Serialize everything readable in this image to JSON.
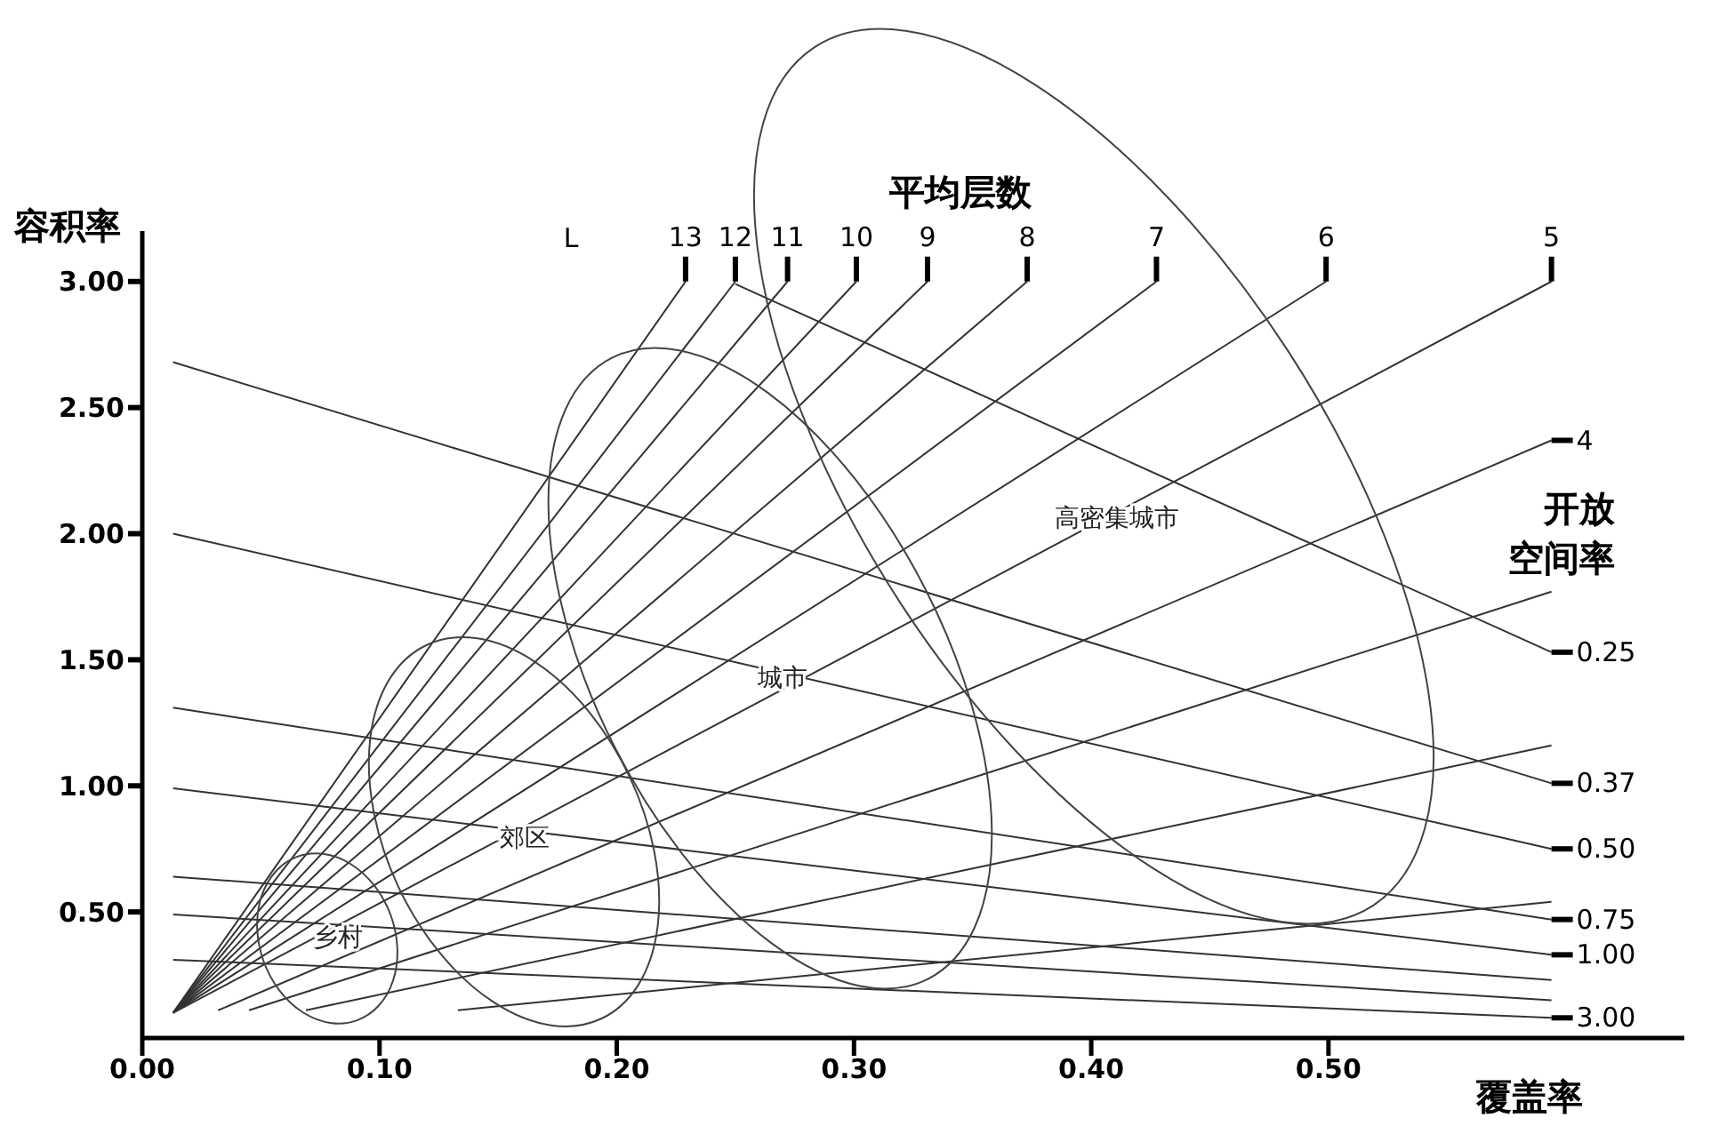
{
  "chart_data": {
    "type": "line",
    "xlabel": "覆盖率",
    "ylabel": "容积率",
    "xlim": [
      0,
      0.65
    ],
    "ylim": [
      0,
      3.2
    ],
    "xticks": [
      {
        "value": 0,
        "label": "0.00"
      },
      {
        "value": 0.1,
        "label": "0.10"
      },
      {
        "value": 0.2,
        "label": "0.20"
      },
      {
        "value": 0.3,
        "label": "0.30"
      },
      {
        "value": 0.4,
        "label": "0.40"
      },
      {
        "value": 0.5,
        "label": "0.50"
      }
    ],
    "yticks": [
      {
        "value": 0.5,
        "label": "0.50"
      },
      {
        "value": 1,
        "label": "1.00"
      },
      {
        "value": 1.5,
        "label": "1.50"
      },
      {
        "value": 2,
        "label": "2.00"
      },
      {
        "value": 2.5,
        "label": "2.50"
      },
      {
        "value": 3,
        "label": "3.00"
      }
    ],
    "annotations": [
      "平均层数",
      "L",
      "开放空间率",
      "乡村",
      "郊区",
      "城市",
      "高密集城市"
    ],
    "series": [
      {
        "name": "13",
        "color": "#333333",
        "x": [
          0.013,
          0.229
        ],
        "values": [
          0.1,
          3.0
        ]
      },
      {
        "name": "12",
        "color": "#333333",
        "x": [
          0.013,
          0.25
        ],
        "values": [
          0.1,
          3.0
        ]
      },
      {
        "name": "11",
        "color": "#333333",
        "x": [
          0.013,
          0.272
        ],
        "values": [
          0.1,
          3.0
        ]
      },
      {
        "name": "10",
        "color": "#333333",
        "x": [
          0.013,
          0.301
        ],
        "values": [
          0.1,
          3.0
        ]
      },
      {
        "name": "9",
        "color": "#333333",
        "x": [
          0.013,
          0.331
        ],
        "values": [
          0.1,
          3.0
        ]
      },
      {
        "name": "8",
        "color": "#333333",
        "x": [
          0.013,
          0.373
        ],
        "values": [
          0.1,
          3.0
        ]
      },
      {
        "name": "7",
        "color": "#333333",
        "x": [
          0.013,
          0.4275
        ],
        "values": [
          0.1,
          3.0
        ]
      },
      {
        "name": "6",
        "color": "#333333",
        "x": [
          0.013,
          0.499
        ],
        "values": [
          0.1,
          3.0
        ]
      },
      {
        "name": "5",
        "color": "#333333",
        "x": [
          0.013,
          0.594
        ],
        "values": [
          0.1,
          3.0
        ]
      },
      {
        "name": "4",
        "color": "#333333",
        "x": [
          0.032,
          0.594
        ],
        "values": [
          0.11,
          2.37
        ]
      },
      {
        "color": "#333333",
        "x": [
          0.045,
          0.594
        ],
        "values": [
          0.11,
          1.77
        ]
      },
      {
        "color": "#333333",
        "x": [
          0.069,
          0.594
        ],
        "values": [
          0.11,
          1.16
        ]
      },
      {
        "color": "#333333",
        "x": [
          0.133,
          0.594
        ],
        "values": [
          0.11,
          0.54
        ]
      },
      {
        "name": "0.25",
        "color": "#333333",
        "x": [
          0.25,
          0.594
        ],
        "values": [
          2.99,
          1.53
        ]
      },
      {
        "name": "0.37",
        "color": "#333333",
        "x": [
          0.013,
          0.594
        ],
        "values": [
          2.68,
          1.01
        ]
      },
      {
        "name": "0.50",
        "color": "#333333",
        "x": [
          0.013,
          0.594
        ],
        "values": [
          2.0,
          0.75
        ]
      },
      {
        "name": "0.75",
        "color": "#333333",
        "x": [
          0.013,
          0.594
        ],
        "values": [
          1.31,
          0.47
        ]
      },
      {
        "name": "1.00",
        "color": "#333333",
        "x": [
          0.013,
          0.594
        ],
        "values": [
          0.99,
          0.33
        ]
      },
      {
        "color": "#333333",
        "x": [
          0.013,
          0.594
        ],
        "values": [
          0.64,
          0.23
        ]
      },
      {
        "color": "#333333",
        "x": [
          0.013,
          0.594
        ],
        "values": [
          0.49,
          0.15
        ]
      },
      {
        "name": "3.00",
        "color": "#333333",
        "x": [
          0.013,
          0.594
        ],
        "values": [
          0.31,
          0.08
        ]
      }
    ]
  }
}
